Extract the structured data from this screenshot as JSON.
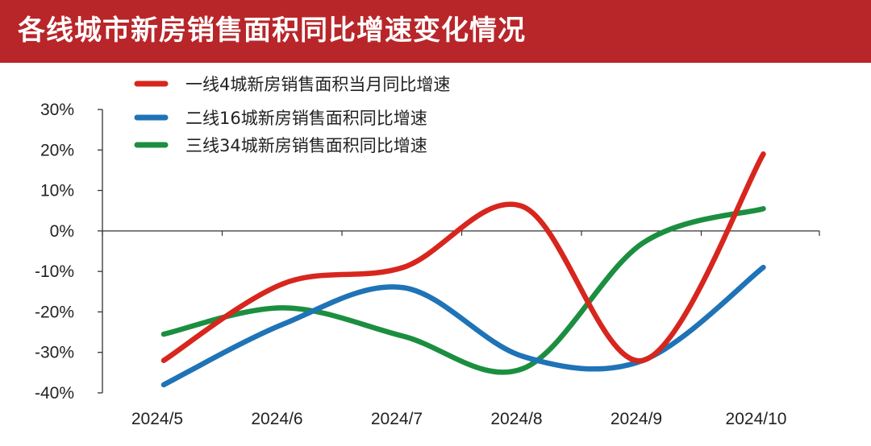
{
  "header": {
    "title": "各线城市新房销售面积同比增速变化情况"
  },
  "colors": {
    "header_bg": "#b8262a",
    "tier1": "#d7261e",
    "tier2": "#1f73b7",
    "tier3": "#1b8f3f"
  },
  "chart_data": {
    "type": "line",
    "title": "各线城市新房销售面积同比增速变化情况",
    "categories": [
      "2024/5",
      "2024/6",
      "2024/7",
      "2024/8",
      "2024/9",
      "2024/10"
    ],
    "y_ticks": [
      "30%",
      "20%",
      "10%",
      "0%",
      "-10%",
      "-20%",
      "-30%",
      "-40%"
    ],
    "ylim": [
      -40,
      30
    ],
    "legend_position": "top-left",
    "series": [
      {
        "name": "一线4城新房销售面积当月同比增速",
        "values": [
          -32,
          -13,
          -9,
          6,
          -32,
          19
        ]
      },
      {
        "name": "二线16城新房销售面积同比增速",
        "values": [
          -38,
          -23,
          -14,
          -31,
          -32,
          -9
        ]
      },
      {
        "name": "三线34城新房销售面积同比增速",
        "values": [
          -25.5,
          -19,
          -26,
          -34,
          -3,
          5.5
        ]
      }
    ]
  }
}
